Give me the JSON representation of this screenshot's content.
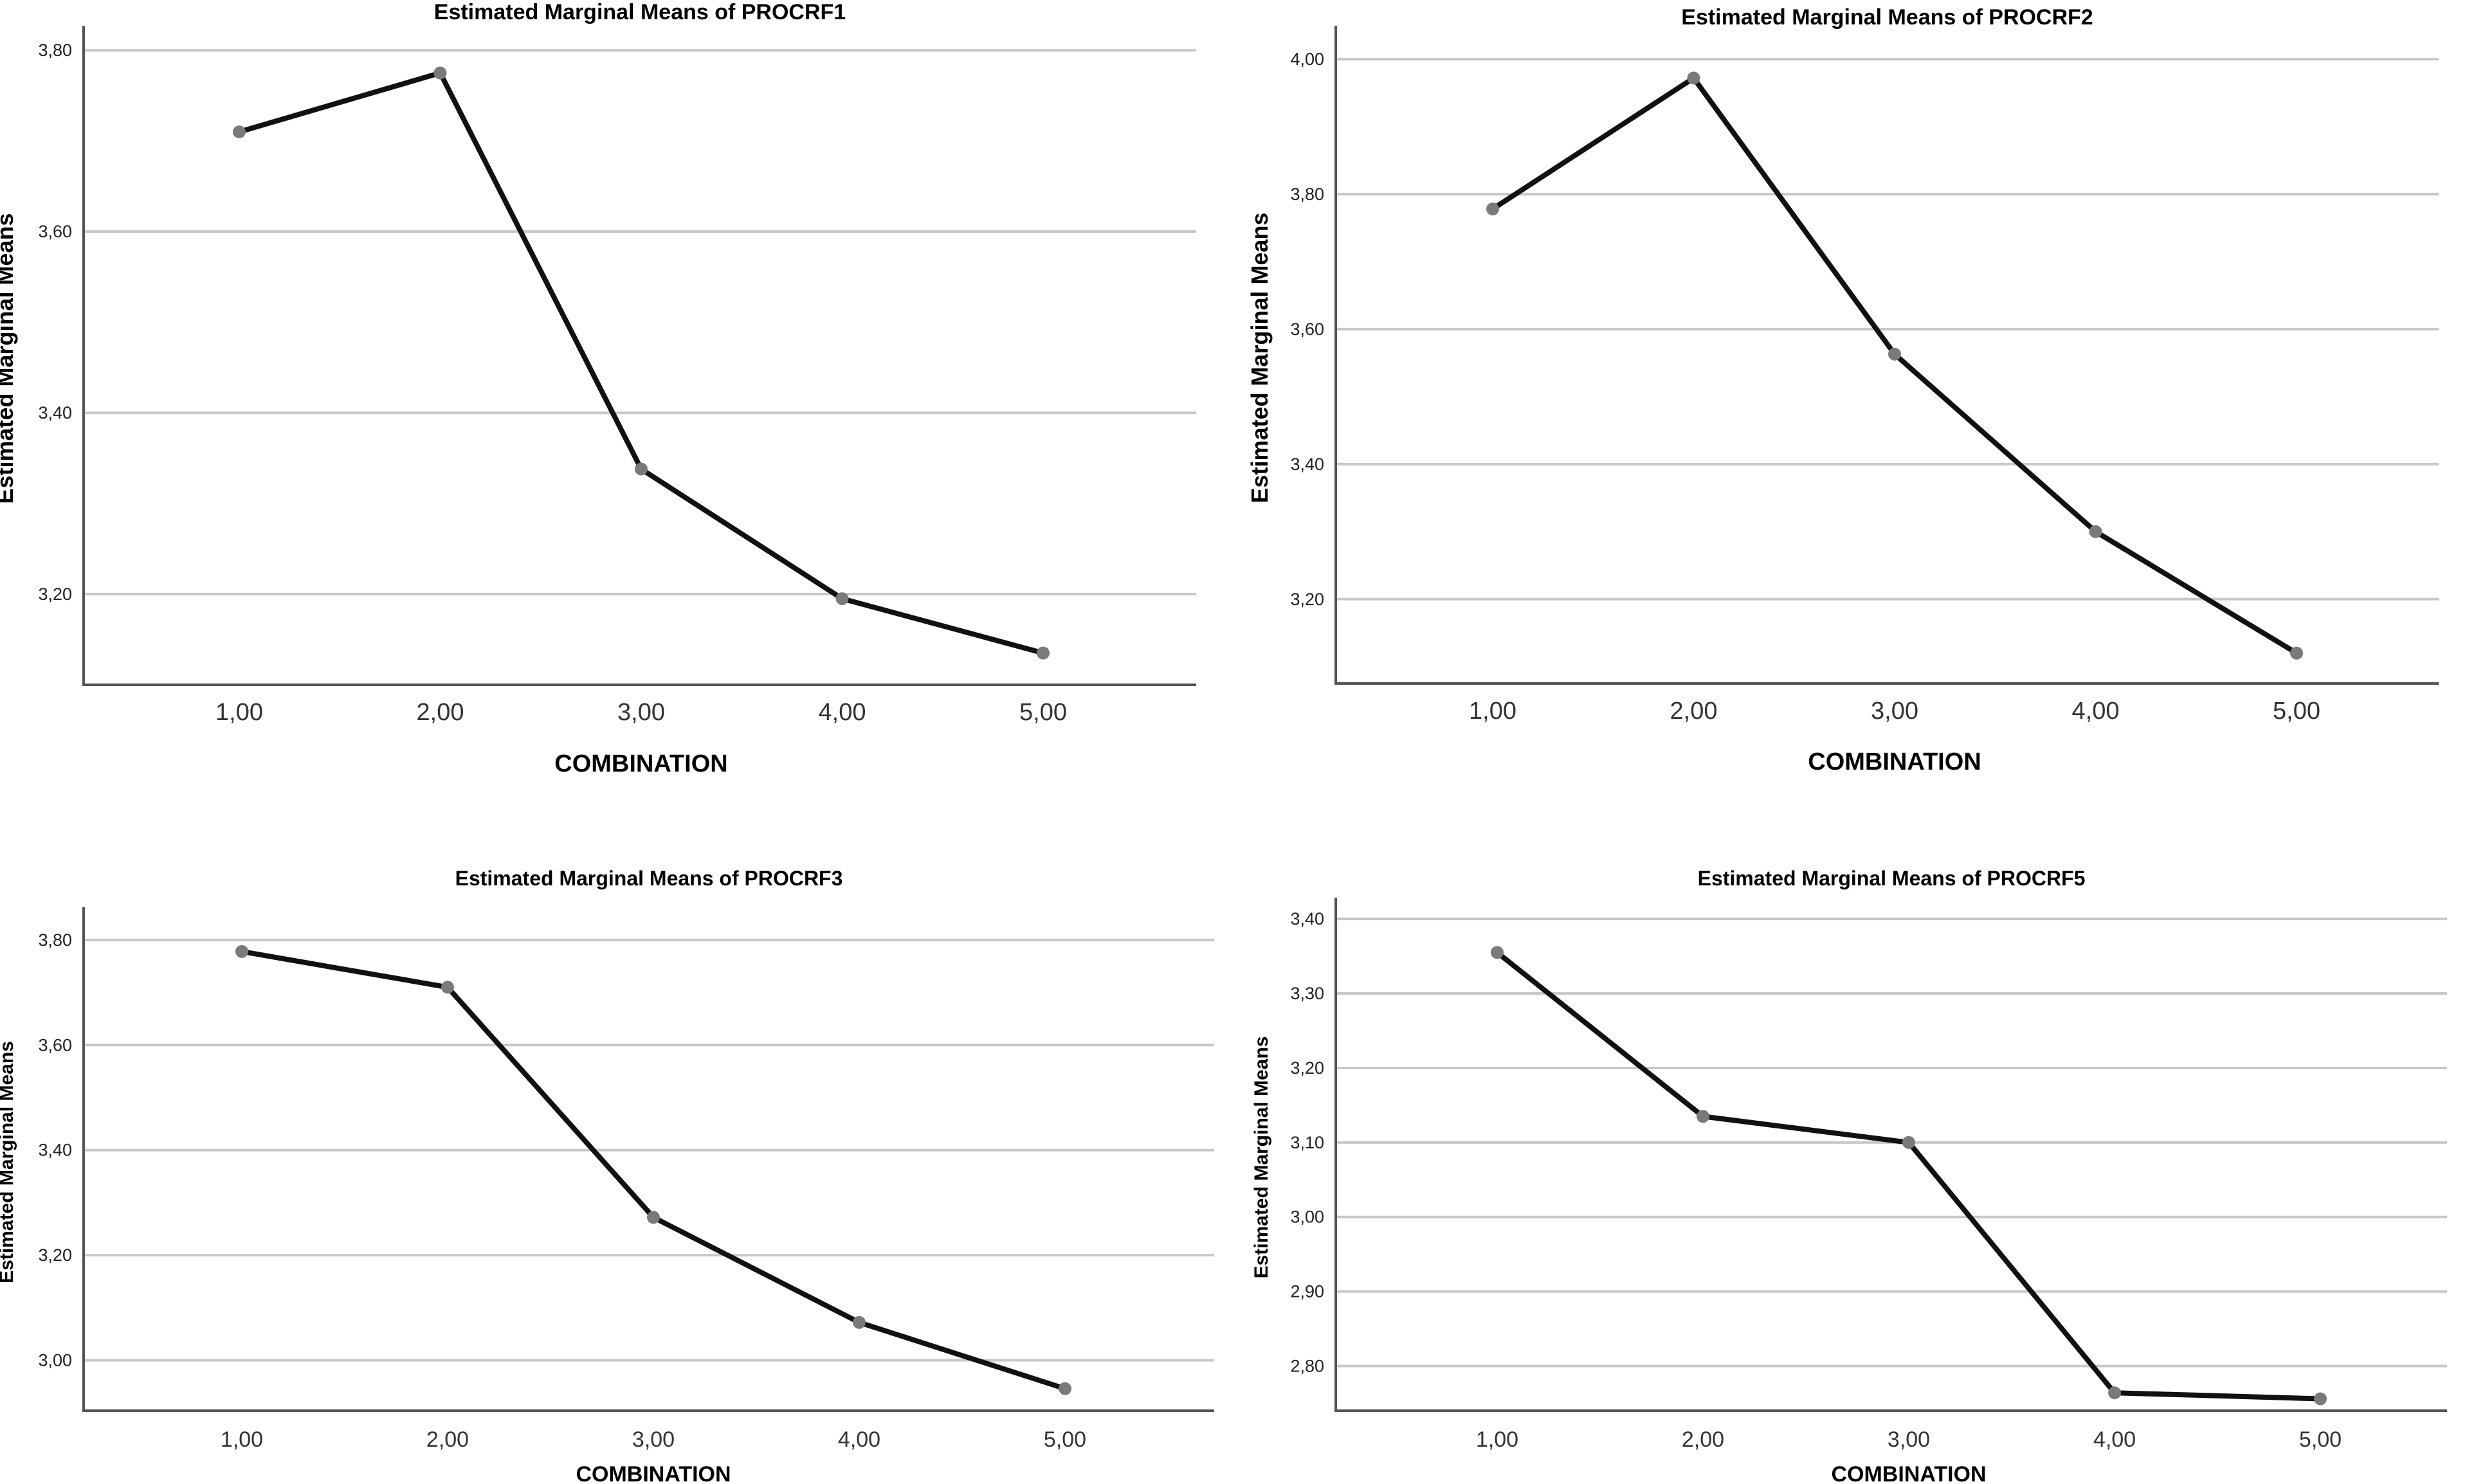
{
  "chart_data": [
    {
      "type": "line",
      "title": "Estimated Marginal Means of PROCRF1",
      "xlabel": "COMBINATION",
      "ylabel": "Estimated Marginal Means",
      "categories": [
        "1,00",
        "2,00",
        "3,00",
        "4,00",
        "5,00"
      ],
      "values": [
        3.71,
        3.775,
        3.338,
        3.195,
        3.135
      ],
      "ylim": [
        3.1,
        3.82
      ],
      "yticks": [
        3.2,
        3.4,
        3.6,
        3.8
      ],
      "ytick_labels": [
        "3,20",
        "3,40",
        "3,60",
        "3,80"
      ],
      "grid": true
    },
    {
      "type": "line",
      "title": "Estimated Marginal Means of PROCRF2",
      "xlabel": "COMBINATION",
      "ylabel": "Estimated Marginal Means",
      "categories": [
        "1,00",
        "2,00",
        "3,00",
        "4,00",
        "5,00"
      ],
      "values": [
        3.778,
        3.972,
        3.563,
        3.3,
        3.12
      ],
      "ylim": [
        3.075,
        4.04
      ],
      "yticks": [
        3.2,
        3.4,
        3.6,
        3.8,
        4.0
      ],
      "ytick_labels": [
        "3,20",
        "3,40",
        "3,60",
        "3,80",
        "4,00"
      ],
      "grid": true
    },
    {
      "type": "line",
      "title": "Estimated Marginal Means of PROCRF3",
      "xlabel": "COMBINATION",
      "ylabel": "Estimated Marginal Means",
      "categories": [
        "1,00",
        "2,00",
        "3,00",
        "4,00",
        "5,00"
      ],
      "values": [
        3.778,
        3.71,
        3.272,
        3.072,
        2.946
      ],
      "ylim": [
        2.904,
        3.85
      ],
      "yticks": [
        3.0,
        3.2,
        3.4,
        3.6,
        3.8
      ],
      "ytick_labels": [
        "3,00",
        "3,20",
        "3,40",
        "3,60",
        "3,80"
      ],
      "grid": true
    },
    {
      "type": "line",
      "title": "Estimated Marginal Means of PROCRF5",
      "xlabel": "COMBINATION",
      "ylabel": "Estimated Marginal Means",
      "categories": [
        "1,00",
        "2,00",
        "3,00",
        "4,00",
        "5,00"
      ],
      "values": [
        3.355,
        3.135,
        3.1,
        2.764,
        2.756
      ],
      "ylim": [
        2.74,
        3.42
      ],
      "yticks": [
        2.8,
        2.9,
        3.0,
        3.1,
        3.2,
        3.3,
        3.4
      ],
      "ytick_labels": [
        "2,80",
        "2,90",
        "3,00",
        "3,10",
        "3,20",
        "3,30",
        "3,40"
      ],
      "grid": true
    }
  ],
  "colors": {
    "line": "#111111",
    "marker": "#7a7a7a",
    "grid": "#c8c8c8",
    "axis": "#555555"
  }
}
